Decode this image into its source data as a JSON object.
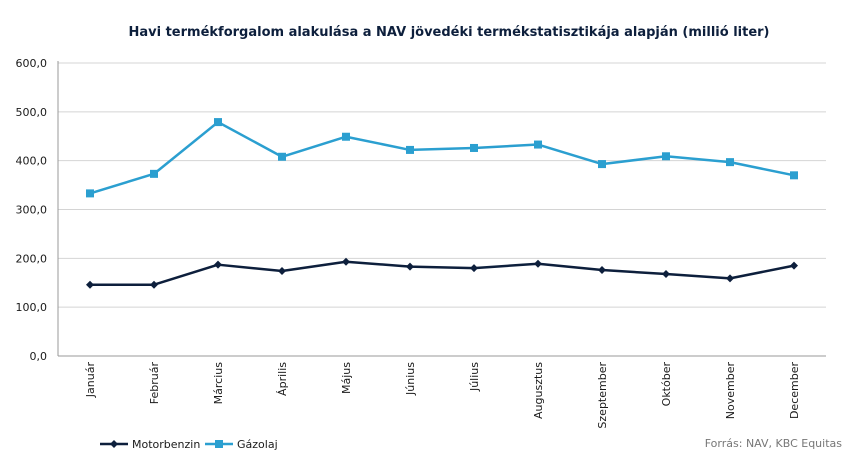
{
  "chart_data": {
    "type": "line",
    "title": "Havi termékforgalom alakulása a NAV jövedéki termékstatisztikája alapján (millió liter)",
    "categories": [
      "Január",
      "Február",
      "Március",
      "Április",
      "Május",
      "Június",
      "Július",
      "Augusztus",
      "Szeptember",
      "Október",
      "November",
      "December"
    ],
    "series": [
      {
        "name": "Motorbenzin",
        "color": "#0d1f3c",
        "marker": "diamond",
        "values": [
          146,
          146,
          187,
          174,
          193,
          183,
          180,
          189,
          176,
          168,
          159,
          185
        ]
      },
      {
        "name": "Gázolaj",
        "color": "#2b9fd0",
        "marker": "square",
        "values": [
          333,
          373,
          479,
          408,
          449,
          422,
          426,
          433,
          393,
          409,
          397,
          370
        ]
      }
    ],
    "ylim": [
      0,
      600
    ],
    "yticks": [
      0,
      100,
      200,
      300,
      400,
      500,
      600
    ],
    "ytick_labels": [
      "0,0",
      "100,0",
      "200,0",
      "300,0",
      "400,0",
      "500,0",
      "600,0"
    ],
    "grid": true,
    "legend_position": "bottom-left",
    "source": "Forrás: NAV, KBC Equitas"
  }
}
